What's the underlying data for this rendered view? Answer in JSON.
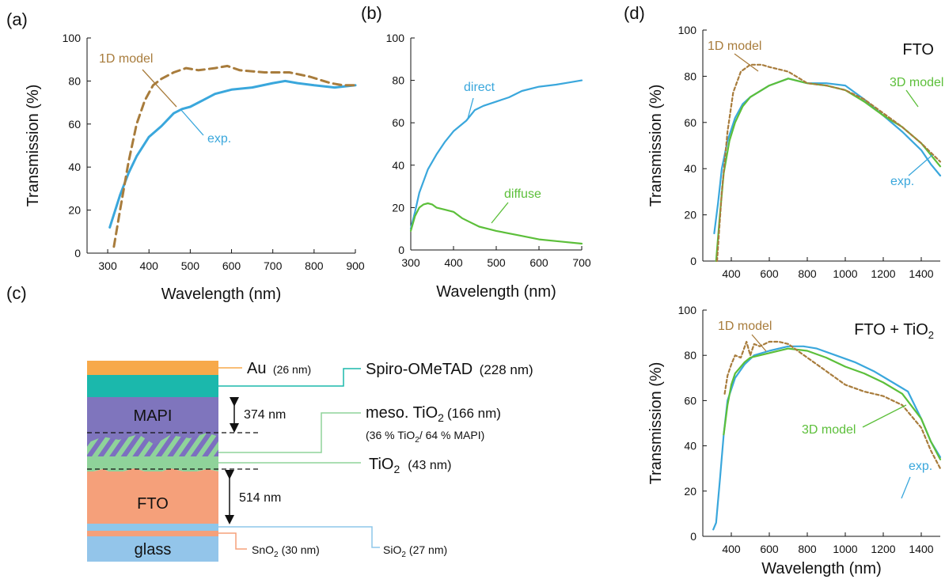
{
  "panels": {
    "a": "(a)",
    "b": "(b)",
    "c": "(c)",
    "d": "(d)"
  },
  "colors": {
    "exp": "#3aa7dc",
    "direct": "#3aa7dc",
    "diffuse": "#5cbf3a",
    "model1d": "#a87c3c",
    "model3d": "#5cbf3a"
  },
  "chart_data": [
    {
      "id": "a",
      "type": "line",
      "xlabel": "Wavelength (nm)",
      "ylabel": "Transmission (%)",
      "xlim": [
        250,
        900
      ],
      "ylim": [
        0,
        100
      ],
      "xticks": [
        300,
        400,
        500,
        600,
        700,
        800,
        900
      ],
      "yticks": [
        0,
        20,
        40,
        60,
        80,
        100
      ],
      "series": [
        {
          "name": "exp.",
          "color": "#3aa7dc",
          "dash": false,
          "x": [
            305,
            330,
            350,
            370,
            400,
            430,
            460,
            480,
            500,
            530,
            560,
            600,
            650,
            700,
            730,
            760,
            800,
            850,
            900
          ],
          "y": [
            12,
            27,
            37,
            45,
            54,
            59,
            65,
            67,
            68,
            71,
            74,
            76,
            77,
            79,
            80,
            79,
            78,
            77,
            78
          ]
        },
        {
          "name": "1D model",
          "color": "#a87c3c",
          "dash": true,
          "x": [
            315,
            330,
            350,
            370,
            390,
            410,
            430,
            460,
            490,
            520,
            560,
            590,
            620,
            680,
            740,
            790,
            840,
            870,
            900
          ],
          "y": [
            3,
            20,
            42,
            60,
            71,
            78,
            81,
            84,
            86,
            85,
            86,
            87,
            85,
            84,
            84,
            82,
            79,
            78,
            78
          ]
        }
      ],
      "annotations": [
        {
          "text": "1D model",
          "series": "1D model"
        },
        {
          "text": "exp.",
          "series": "exp."
        }
      ]
    },
    {
      "id": "b",
      "type": "line",
      "xlabel": "Wavelength (nm)",
      "ylabel": "",
      "xlim": [
        300,
        700
      ],
      "ylim": [
        0,
        100
      ],
      "xticks": [
        300,
        400,
        500,
        600,
        700
      ],
      "yticks": [
        0,
        20,
        40,
        60,
        80,
        100
      ],
      "series": [
        {
          "name": "direct",
          "color": "#3aa7dc",
          "dash": false,
          "x": [
            300,
            310,
            320,
            340,
            360,
            380,
            400,
            430,
            450,
            470,
            500,
            530,
            560,
            600,
            640,
            670,
            700
          ],
          "y": [
            10,
            18,
            27,
            38,
            45,
            51,
            56,
            61,
            66,
            68,
            70,
            72,
            75,
            77,
            78,
            79,
            80
          ]
        },
        {
          "name": "diffuse",
          "color": "#5cbf3a",
          "dash": false,
          "x": [
            300,
            310,
            320,
            330,
            340,
            350,
            360,
            380,
            400,
            420,
            440,
            460,
            480,
            500,
            550,
            600,
            650,
            700
          ],
          "y": [
            9,
            16,
            20,
            21.5,
            22,
            21.5,
            20,
            19,
            18,
            15,
            13,
            11,
            10,
            9,
            7,
            5,
            4,
            3
          ]
        }
      ],
      "annotations": [
        {
          "text": "direct",
          "series": "direct"
        },
        {
          "text": "diffuse",
          "series": "diffuse"
        }
      ]
    },
    {
      "id": "d1",
      "type": "line",
      "xlabel": "",
      "ylabel": "Transmission (%)",
      "xlim": [
        250,
        1500
      ],
      "ylim": [
        0,
        100
      ],
      "xticks": [
        400,
        600,
        800,
        1000,
        1200,
        1400
      ],
      "yticks": [
        0,
        20,
        40,
        60,
        80,
        100
      ],
      "title": "FTO",
      "series": [
        {
          "name": "exp.",
          "color": "#3aa7dc",
          "dash": false,
          "x": [
            310,
            330,
            350,
            380,
            420,
            460,
            500,
            600,
            700,
            800,
            900,
            1000,
            1100,
            1200,
            1300,
            1400,
            1450,
            1500
          ],
          "y": [
            12,
            25,
            40,
            52,
            62,
            68,
            71,
            76,
            79,
            77,
            77,
            76,
            70,
            63,
            56,
            48,
            42,
            37
          ]
        },
        {
          "name": "3D model",
          "color": "#5cbf3a",
          "dash": false,
          "x": [
            320,
            340,
            360,
            390,
            420,
            460,
            500,
            600,
            700,
            800,
            900,
            1000,
            1100,
            1200,
            1300,
            1400,
            1450,
            1500
          ],
          "y": [
            0,
            20,
            38,
            52,
            60,
            67,
            71,
            76,
            79,
            77,
            76,
            74,
            69,
            63,
            58,
            51,
            46,
            41
          ]
        },
        {
          "name": "1D model",
          "color": "#a87c3c",
          "dash": true,
          "x": [
            325,
            350,
            380,
            410,
            450,
            500,
            560,
            600,
            650,
            700,
            760,
            800,
            900,
            1000,
            1100,
            1200,
            1300,
            1400,
            1500
          ],
          "y": [
            0,
            30,
            56,
            73,
            82,
            85,
            85,
            84,
            83,
            82,
            79,
            77,
            76,
            74,
            70,
            64,
            58,
            51,
            43
          ]
        }
      ],
      "annotations": [
        {
          "text": "1D model",
          "series": "1D model"
        },
        {
          "text": "3D model",
          "series": "3D model"
        },
        {
          "text": "exp.",
          "series": "exp."
        }
      ]
    },
    {
      "id": "d2",
      "type": "line",
      "xlabel": "Wavelength (nm)",
      "ylabel": "Transmission (%)",
      "xlim": [
        250,
        1500
      ],
      "ylim": [
        0,
        100
      ],
      "xticks": [
        400,
        600,
        800,
        1000,
        1200,
        1400
      ],
      "yticks": [
        0,
        20,
        40,
        60,
        80,
        100
      ],
      "title": "FTO + TiO2",
      "series": [
        {
          "name": "exp.",
          "color": "#3aa7dc",
          "dash": false,
          "x": [
            305,
            320,
            340,
            360,
            380,
            420,
            470,
            520,
            600,
            700,
            780,
            850,
            950,
            1050,
            1150,
            1250,
            1330,
            1400,
            1450,
            1500
          ],
          "y": [
            3,
            6,
            25,
            45,
            60,
            70,
            76,
            80,
            82,
            84,
            84,
            83,
            80,
            77,
            73,
            68,
            64,
            52,
            42,
            35
          ]
        },
        {
          "name": "3D model",
          "color": "#5cbf3a",
          "dash": false,
          "x": [
            360,
            380,
            400,
            420,
            440,
            470,
            500,
            550,
            600,
            700,
            800,
            900,
            1000,
            1100,
            1200,
            1300,
            1400,
            1450,
            1500
          ],
          "y": [
            45,
            58,
            67,
            72,
            74,
            77,
            79,
            80,
            81,
            83,
            82,
            79,
            75,
            72,
            68,
            63,
            52,
            42,
            34
          ]
        },
        {
          "name": "1D model",
          "color": "#a87c3c",
          "dash": true,
          "x": [
            365,
            380,
            400,
            420,
            450,
            480,
            500,
            520,
            550,
            600,
            650,
            700,
            750,
            800,
            850,
            900,
            1000,
            1100,
            1200,
            1300,
            1400,
            1450,
            1500
          ],
          "y": [
            63,
            71,
            76,
            80,
            79,
            86,
            80,
            85,
            84,
            86,
            86,
            85,
            82,
            79,
            76,
            73,
            67,
            64,
            62,
            58,
            48,
            38,
            30
          ]
        }
      ],
      "annotations": [
        {
          "text": "1D model",
          "series": "1D model"
        },
        {
          "text": "exp.",
          "series": "exp."
        },
        {
          "text": "3D model",
          "series": "3D model"
        }
      ]
    }
  ],
  "stack": {
    "layers": [
      {
        "key": "au",
        "name": "Au",
        "thickness": "(26 nm)",
        "color": "#f7a94a"
      },
      {
        "key": "spiro",
        "name": "Spiro-OMeTAD",
        "thickness": "(228 nm)",
        "color": "#1bb8ac"
      },
      {
        "key": "mapi",
        "name": "MAPI",
        "color": "#7f75bd"
      },
      {
        "key": "meso",
        "name": "meso. TiO",
        "sub": "2",
        "thickness": "(166 nm)",
        "note_a": "(36 % TiO",
        "note_sub": "2",
        "note_b": "/ 64 % MAPI)",
        "color": "#8fd39a",
        "stripe": "#7c6fc0"
      },
      {
        "key": "tio2",
        "name": "TiO",
        "sub": "2",
        "thickness": "(43 nm)",
        "color": "#8fd39a"
      },
      {
        "key": "fto",
        "name": "FTO",
        "color": "#f5a07a"
      },
      {
        "key": "sio2",
        "name": "SiO",
        "sub": "2",
        "thickness": "(27 nm)",
        "color": "#8ec7ea"
      },
      {
        "key": "sno2",
        "name": "SnO",
        "sub": "2",
        "thickness": "(30 nm)",
        "color": "#f5a07a"
      },
      {
        "key": "glass",
        "name": "glass",
        "color": "#93c5ea"
      }
    ],
    "dim_mapi": "374 nm",
    "dim_fto": "514 nm"
  }
}
